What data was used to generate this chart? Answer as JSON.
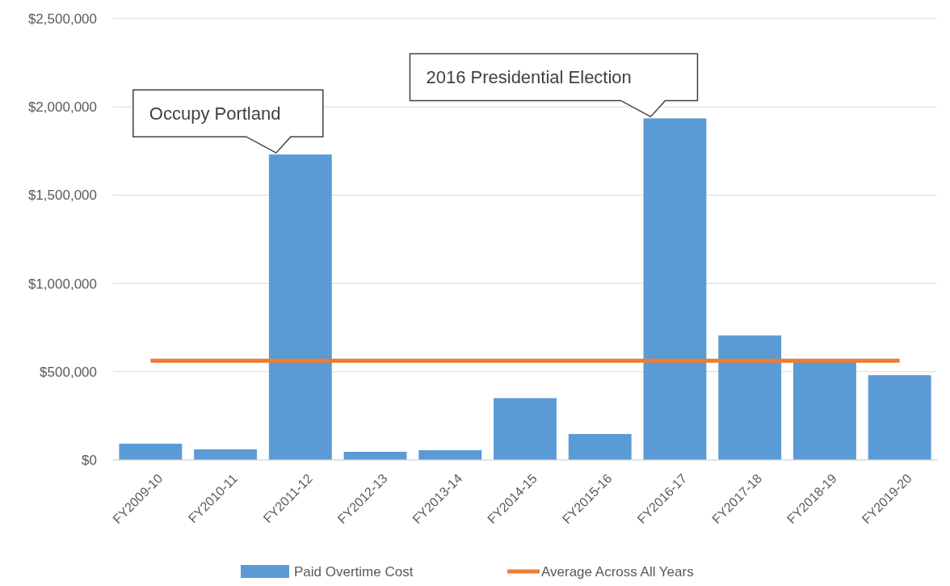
{
  "chart_data": {
    "type": "bar",
    "categories": [
      "FY2009-10",
      "FY2010-11",
      "FY2011-12",
      "FY2012-13",
      "FY2013-14",
      "FY2014-15",
      "FY2015-16",
      "FY2016-17",
      "FY2017-18",
      "FY2018-19",
      "FY2019-20"
    ],
    "series": [
      {
        "name": "Paid Overtime Cost",
        "color": "#5b9bd5",
        "values": [
          92000,
          60000,
          1730000,
          46000,
          55000,
          350000,
          147000,
          1935000,
          705000,
          560000,
          480000
        ]
      },
      {
        "name": "Average Across All Years",
        "type": "line",
        "color": "#ed7d31",
        "values": [
          562000,
          562000,
          562000,
          562000,
          562000,
          562000,
          562000,
          562000,
          562000,
          562000,
          562000
        ]
      }
    ],
    "ylim": [
      0,
      2500000
    ],
    "yticks": [
      {
        "value": 0,
        "label": "$0"
      },
      {
        "value": 500000,
        "label": "$500,000"
      },
      {
        "value": 1000000,
        "label": "$1,000,000"
      },
      {
        "value": 1500000,
        "label": "$1,500,000"
      },
      {
        "value": 2000000,
        "label": "$2,000,000"
      },
      {
        "value": 2500000,
        "label": "$2,500,000"
      }
    ],
    "grid": "y",
    "legend": "bottom",
    "annotations": [
      {
        "text": "Occupy Portland",
        "x": "FY2011-12",
        "y": 1730000
      },
      {
        "text": "2016 Presidential Election",
        "x": "FY2016-17",
        "y": 1935000
      }
    ]
  }
}
